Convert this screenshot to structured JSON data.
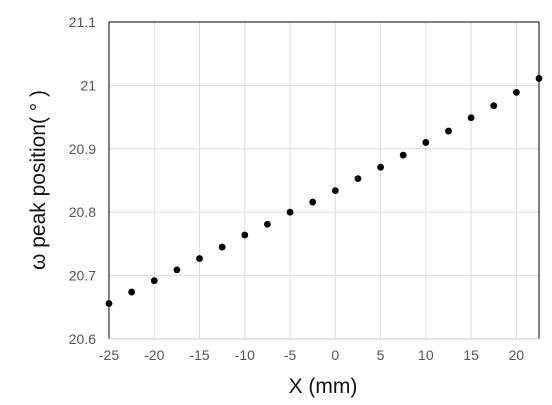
{
  "chart_data": {
    "type": "scatter",
    "title": "",
    "xlabel": "X (mm)",
    "ylabel": "ω peak position( ° )",
    "xlim": [
      -25,
      22.5
    ],
    "ylim": [
      20.6,
      21.1
    ],
    "x_ticks": [
      -25,
      -20,
      -15,
      -10,
      -5,
      0,
      5,
      10,
      15,
      20
    ],
    "x_tick_labels": [
      "-25",
      "-20",
      "-15",
      "-10",
      "-5",
      "0",
      "5",
      "10",
      "15",
      "20"
    ],
    "y_ticks": [
      20.6,
      20.7,
      20.8,
      20.9,
      21.0,
      21.1
    ],
    "y_tick_labels": [
      "20.6",
      "20.7",
      "20.8",
      "20.9",
      "21",
      "21.1"
    ],
    "grid": true,
    "series": [
      {
        "marker_color": "#000000",
        "x": [
          -25,
          -22.5,
          -20,
          -17.5,
          -15,
          -12.5,
          -10,
          -7.5,
          -5,
          -2.5,
          0,
          2.5,
          5,
          7.5,
          10,
          12.5,
          15,
          17.5,
          20,
          22.5
        ],
        "y": [
          20.656,
          20.674,
          20.692,
          20.709,
          20.727,
          20.745,
          20.764,
          20.781,
          20.8,
          20.816,
          20.834,
          20.853,
          20.871,
          20.89,
          20.91,
          20.928,
          20.949,
          20.968,
          20.989,
          21.011
        ]
      }
    ]
  }
}
